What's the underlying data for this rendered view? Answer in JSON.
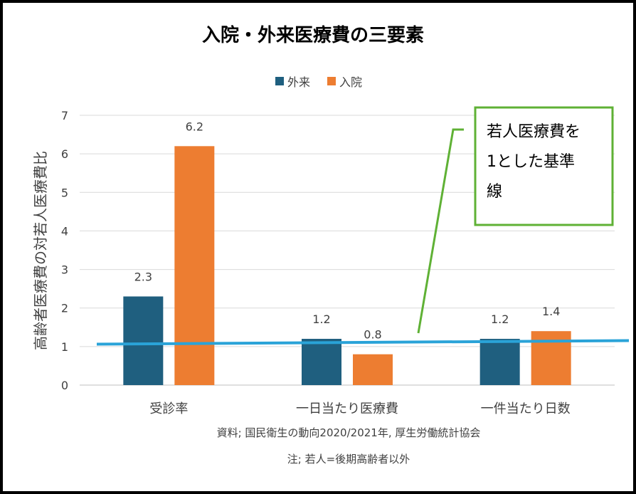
{
  "chart_data": {
    "type": "bar",
    "title": "入院・外来医療費の三要素",
    "ylabel": "高齢者医療費の対若人医療費比",
    "xlabel": "",
    "categories": [
      "受診率",
      "一日当たり医療費",
      "一件当たり日数"
    ],
    "series": [
      {
        "name": "外来",
        "values": [
          2.3,
          1.2,
          1.2
        ],
        "color": "#1f5f7f"
      },
      {
        "name": "入院",
        "values": [
          6.2,
          0.8,
          1.4
        ],
        "color": "#ed7d31"
      }
    ],
    "data_labels": [
      [
        "2.3",
        "1.2",
        "1.2"
      ],
      [
        "6.2",
        "0.8",
        "1.4"
      ]
    ],
    "ylim": [
      0,
      7
    ],
    "yticks": [
      "0",
      "1",
      "2",
      "3",
      "4",
      "5",
      "6",
      "7"
    ],
    "grid": true,
    "legend_position": "top",
    "reference_line": {
      "value": 1.08,
      "color": "#2aa3d8"
    },
    "annotation": {
      "lines": [
        "若人医療費を",
        "1とした基準",
        "線"
      ],
      "color": "#5fb135"
    },
    "source": "資料; 国民衛生の動向2020/2021年,  厚生労働統計協会",
    "note": "注; 若人=後期高齢者以外"
  }
}
